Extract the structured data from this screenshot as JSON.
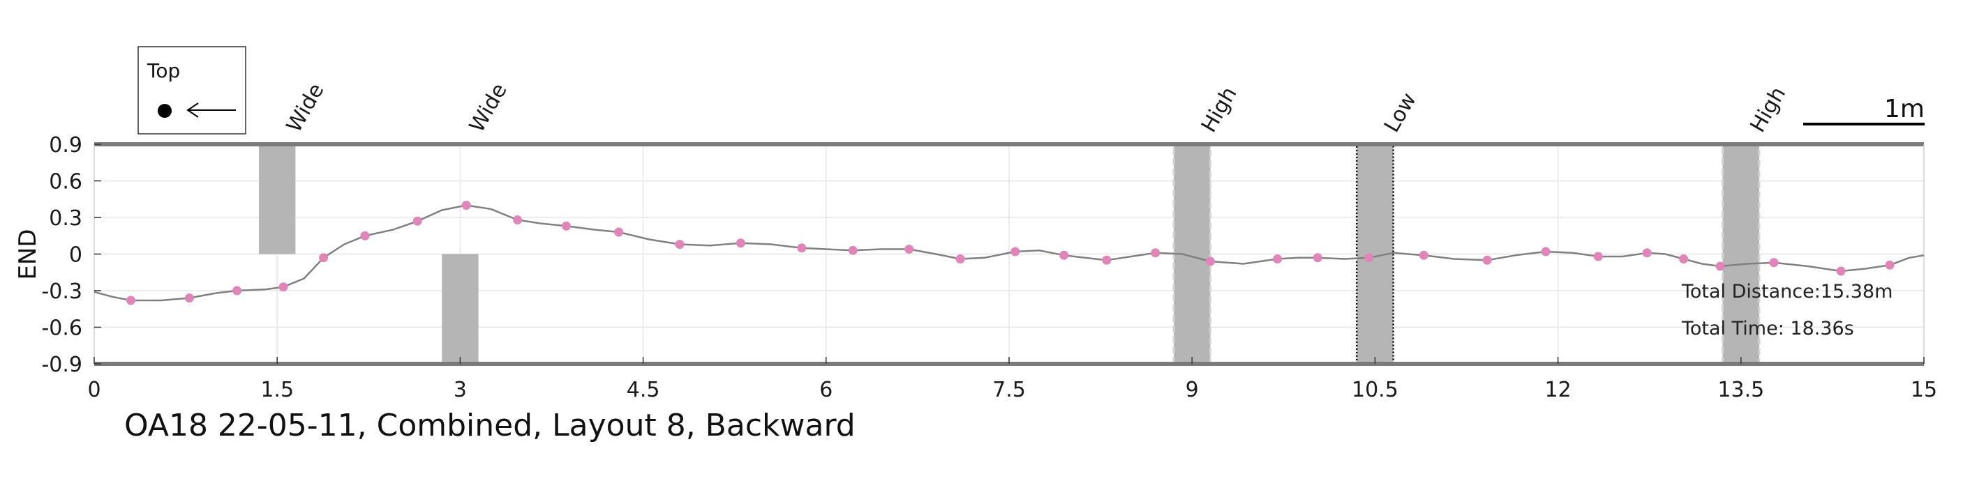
{
  "chart_data": {
    "type": "line",
    "title": "OA18 22-05-11, Combined, Layout 8, Backward",
    "ylabel": "END",
    "xlabel": "",
    "xlim": [
      0,
      15
    ],
    "ylim": [
      -0.9,
      0.9
    ],
    "x_ticks": [
      0,
      1.5,
      3,
      4.5,
      6,
      7.5,
      9,
      10.5,
      12,
      13.5,
      15
    ],
    "x_tick_labels": [
      "0",
      "1.5",
      "3",
      "4.5",
      "6",
      "7.5",
      "9",
      "10.5",
      "12",
      "13.5",
      "15"
    ],
    "y_ticks": [
      0.9,
      0.6,
      0.3,
      0,
      -0.3,
      -0.6,
      -0.9
    ],
    "y_tick_labels": [
      "0.9",
      "0.6",
      "0.3",
      "0",
      "-0.3",
      "-0.6",
      "-0.9"
    ],
    "grid": true,
    "line_color": "#808080",
    "marker_color": "#e085b8",
    "series_points": {
      "x": [
        0.3,
        0.78,
        1.17,
        1.55,
        1.88,
        2.22,
        2.65,
        3.05,
        3.47,
        3.87,
        4.3,
        4.8,
        5.3,
        5.8,
        6.22,
        6.68,
        7.1,
        7.55,
        7.95,
        8.3,
        8.7,
        9.15,
        9.7,
        10.03,
        10.45,
        10.9,
        11.42,
        11.9,
        12.33,
        12.73,
        13.03,
        13.33,
        13.77,
        14.32,
        14.72
      ],
      "y": [
        -0.38,
        -0.36,
        -0.3,
        -0.27,
        -0.03,
        0.15,
        0.27,
        0.4,
        0.28,
        0.23,
        0.18,
        0.08,
        0.09,
        0.05,
        0.03,
        0.04,
        -0.04,
        0.02,
        -0.01,
        -0.05,
        0.01,
        -0.06,
        -0.04,
        -0.03,
        -0.03,
        -0.01,
        -0.05,
        0.02,
        -0.02,
        0.01,
        -0.04,
        -0.1,
        -0.07,
        -0.14,
        -0.09
      ]
    },
    "series_line": {
      "x": [
        0,
        0.15,
        0.3,
        0.55,
        0.78,
        1.0,
        1.17,
        1.4,
        1.55,
        1.72,
        1.88,
        2.05,
        2.22,
        2.45,
        2.65,
        2.85,
        3.05,
        3.25,
        3.47,
        3.67,
        3.87,
        4.1,
        4.3,
        4.55,
        4.8,
        5.05,
        5.3,
        5.55,
        5.8,
        6.0,
        6.22,
        6.45,
        6.68,
        6.9,
        7.1,
        7.3,
        7.55,
        7.75,
        7.95,
        8.12,
        8.3,
        8.5,
        8.7,
        8.92,
        9.15,
        9.42,
        9.7,
        9.87,
        10.03,
        10.25,
        10.45,
        10.65,
        10.9,
        11.15,
        11.42,
        11.65,
        11.9,
        12.12,
        12.33,
        12.53,
        12.73,
        12.88,
        13.03,
        13.18,
        13.33,
        13.55,
        13.77,
        14.05,
        14.32,
        14.52,
        14.72,
        14.88,
        15.0
      ],
      "y": [
        -0.31,
        -0.35,
        -0.38,
        -0.38,
        -0.36,
        -0.32,
        -0.3,
        -0.29,
        -0.27,
        -0.2,
        -0.03,
        0.08,
        0.15,
        0.2,
        0.27,
        0.36,
        0.4,
        0.37,
        0.28,
        0.25,
        0.23,
        0.2,
        0.18,
        0.12,
        0.08,
        0.07,
        0.09,
        0.08,
        0.05,
        0.04,
        0.03,
        0.04,
        0.04,
        0.0,
        -0.04,
        -0.03,
        0.02,
        0.03,
        -0.01,
        -0.03,
        -0.05,
        -0.02,
        0.01,
        0.0,
        -0.06,
        -0.08,
        -0.04,
        -0.03,
        -0.03,
        -0.04,
        -0.03,
        0.01,
        -0.01,
        -0.04,
        -0.05,
        -0.01,
        0.02,
        0.01,
        -0.02,
        -0.02,
        0.01,
        0.0,
        -0.04,
        -0.08,
        -0.1,
        -0.08,
        -0.07,
        -0.1,
        -0.14,
        -0.12,
        -0.09,
        -0.03,
        -0.01
      ]
    },
    "obstacles": [
      {
        "label": "Wide",
        "x_start": 1.35,
        "x_end": 1.65,
        "y_from": 0,
        "y_to": 0.9,
        "style": "solid"
      },
      {
        "label": "Wide",
        "x_start": 2.85,
        "x_end": 3.15,
        "y_from": -0.9,
        "y_to": 0,
        "style": "solid"
      },
      {
        "label": "High",
        "x_start": 8.85,
        "x_end": 9.15,
        "y_from": -0.9,
        "y_to": 0.9,
        "style": "dashed"
      },
      {
        "label": "Low",
        "x_start": 10.35,
        "x_end": 10.65,
        "y_from": -0.9,
        "y_to": 0.9,
        "style": "dotted"
      },
      {
        "label": "High",
        "x_start": 13.35,
        "x_end": 13.65,
        "y_from": -0.9,
        "y_to": 0.9,
        "style": "dashed"
      }
    ],
    "obstacle_color": "#b5b5b5",
    "legend": {
      "label": "Top",
      "placement": "top-left",
      "symbol": "dot-with-left-arrow"
    },
    "scale_bar": {
      "label": "1m",
      "placement": "top-right"
    },
    "annotations": [
      {
        "text": "Total Distance:15.38m"
      },
      {
        "text": "Total Time: 18.36s"
      }
    ]
  }
}
